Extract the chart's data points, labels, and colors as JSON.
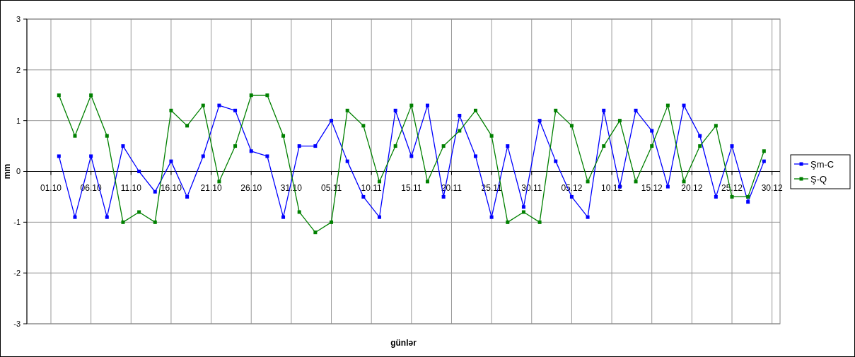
{
  "chart_data": {
    "type": "line",
    "xlabel": "günlər",
    "ylabel": "mm",
    "x": [
      "--10-02",
      "--10-04",
      "--10-06",
      "--10-08",
      "--10-10",
      "--10-12",
      "--10-14",
      "--10-16",
      "--10-18",
      "--10-20",
      "--10-22",
      "--10-24",
      "--10-26",
      "--10-28",
      "--10-30",
      "--11-01",
      "--11-03",
      "--11-05",
      "--11-07",
      "--11-09",
      "--11-11",
      "--11-13",
      "--11-15",
      "--11-17",
      "--11-19",
      "--11-21",
      "--11-23",
      "--11-25",
      "--11-27",
      "--11-29",
      "--12-01",
      "--12-03",
      "--12-05",
      "--12-07",
      "--12-09",
      "--12-11",
      "--12-13",
      "--12-15",
      "--12-17",
      "--12-19",
      "--12-21",
      "--12-23",
      "--12-25",
      "--12-27",
      "--12-29"
    ],
    "series": [
      {
        "name": "Şm-C",
        "color": "#0000ff",
        "values": [
          0.3,
          -0.9,
          0.3,
          -0.9,
          0.5,
          0,
          -0.4,
          0.2,
          -0.5,
          0.3,
          1.3,
          1.2,
          0.4,
          0.3,
          -0.9,
          0.5,
          0.5,
          1.0,
          0.2,
          -0.5,
          -0.9,
          1.2,
          0.3,
          1.3,
          -0.5,
          1.1,
          0.3,
          -0.9,
          0.5,
          -0.7,
          1.0,
          0.2,
          -0.5,
          -0.9,
          1.2,
          -0.3,
          1.2,
          0.8,
          -0.3,
          1.3,
          0.7,
          -0.5,
          0.5,
          -0.6,
          0.2
        ]
      },
      {
        "name": "Ş-Q",
        "color": "#008000",
        "values": [
          1.5,
          0.7,
          1.5,
          0.7,
          -1.0,
          -0.8,
          -1.0,
          1.2,
          0.9,
          1.3,
          -0.2,
          0.5,
          1.5,
          1.5,
          0.7,
          -0.8,
          -1.2,
          -1.0,
          1.2,
          0.9,
          -0.2,
          0.5,
          1.3,
          -0.2,
          0.5,
          0.8,
          1.2,
          0.7,
          -1.0,
          -0.8,
          -1.0,
          1.2,
          0.9,
          -0.2,
          0.5,
          1.0,
          -0.2,
          0.5,
          1.3,
          -0.2,
          0.5,
          0.9,
          -0.5,
          -0.5,
          0.4
        ]
      }
    ],
    "xlim": [
      "--09-28",
      "--12-31"
    ],
    "xticks": [
      {
        "value": "--10-01",
        "label": "01.10"
      },
      {
        "value": "--10-06",
        "label": "06.10"
      },
      {
        "value": "--10-11",
        "label": "11.10"
      },
      {
        "value": "--10-16",
        "label": "16.10"
      },
      {
        "value": "--10-21",
        "label": "21.10"
      },
      {
        "value": "--10-26",
        "label": "26.10"
      },
      {
        "value": "--10-31",
        "label": "31.10"
      },
      {
        "value": "--11-05",
        "label": "05.11"
      },
      {
        "value": "--11-10",
        "label": "10.11"
      },
      {
        "value": "--11-15",
        "label": "15.11"
      },
      {
        "value": "--11-20",
        "label": "20.11"
      },
      {
        "value": "--11-25",
        "label": "25.11"
      },
      {
        "value": "--11-30",
        "label": "30.11"
      },
      {
        "value": "--12-05",
        "label": "05.12"
      },
      {
        "value": "--12-10",
        "label": "10.12"
      },
      {
        "value": "--12-15",
        "label": "15.12"
      },
      {
        "value": "--12-20",
        "label": "20.12"
      },
      {
        "value": "--12-25",
        "label": "25.12"
      },
      {
        "value": "--12-30",
        "label": "30.12"
      }
    ],
    "ylim": [
      -3,
      3
    ],
    "yticks": [
      -3,
      -2,
      -1,
      0,
      1,
      2,
      3
    ],
    "grid": true,
    "legend": "right",
    "marker": "square",
    "line_style": "solid"
  }
}
